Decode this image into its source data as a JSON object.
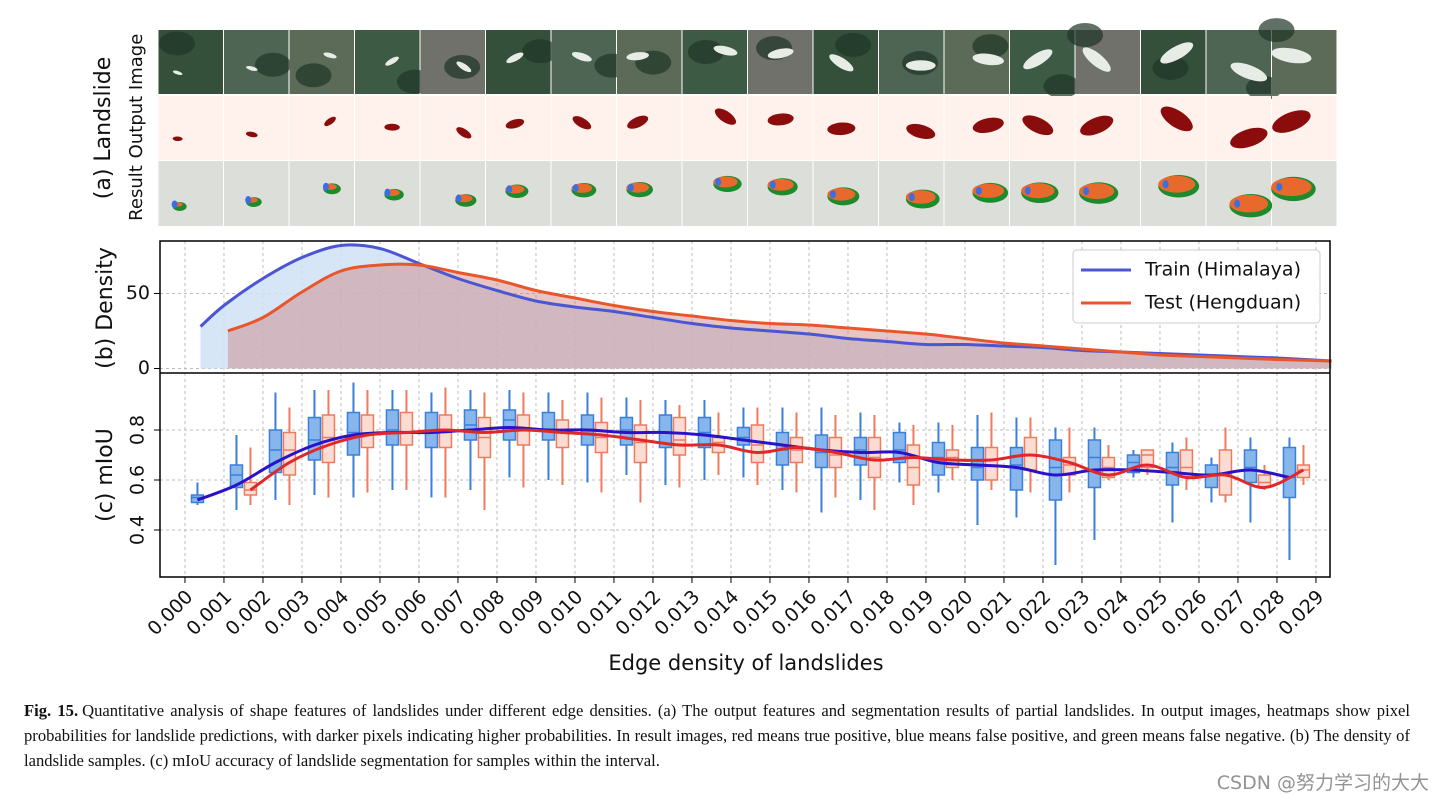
{
  "figure": {
    "panel_a_label": "(a) Landslide",
    "row_labels": [
      "Output Image",
      "Result"
    ]
  },
  "chart_data": [
    {
      "type": "density",
      "ylabel": "(b) Density",
      "xlim": [
        -0.00064,
        0.02936
      ],
      "ylim": [
        -3,
        85
      ],
      "yticks": [
        0,
        50
      ],
      "grid": true,
      "legend": "upper right",
      "series": [
        {
          "name": "Train (Himalaya)",
          "color": "#4b56d2",
          "fill": "#cfe2f5",
          "x": [
            0.0004,
            0.001,
            0.002,
            0.003,
            0.004,
            0.005,
            0.006,
            0.007,
            0.008,
            0.009,
            0.01,
            0.011,
            0.012,
            0.013,
            0.014,
            0.015,
            0.016,
            0.017,
            0.018,
            0.019,
            0.02,
            0.021,
            0.022,
            0.023,
            0.024,
            0.025,
            0.026,
            0.027,
            0.028,
            0.0294
          ],
          "values": [
            28,
            42,
            60,
            74,
            82,
            80,
            70,
            60,
            52,
            45,
            41,
            38,
            34,
            30,
            27,
            25,
            23,
            20,
            18,
            16,
            16,
            15,
            14,
            12,
            11,
            10,
            9,
            8,
            7,
            5
          ]
        },
        {
          "name": "Test (Hengduan)",
          "color": "#e8562a",
          "fill": "#c97f7f",
          "x": [
            0.0011,
            0.002,
            0.003,
            0.004,
            0.005,
            0.006,
            0.007,
            0.008,
            0.009,
            0.01,
            0.011,
            0.012,
            0.013,
            0.014,
            0.015,
            0.016,
            0.017,
            0.018,
            0.019,
            0.02,
            0.021,
            0.022,
            0.023,
            0.024,
            0.025,
            0.026,
            0.027,
            0.028,
            0.0294
          ],
          "values": [
            25,
            34,
            51,
            65,
            69,
            69,
            64,
            59,
            52,
            47,
            42,
            38,
            35,
            32,
            30,
            29,
            27,
            25,
            23,
            20,
            17,
            15,
            13,
            11,
            9,
            8,
            7,
            6,
            5
          ]
        }
      ]
    },
    {
      "type": "box",
      "ylabel": "(c) mIoU",
      "xlabel": "Edge density of landslides",
      "xlim": [
        -0.00064,
        0.02936
      ],
      "ylim": [
        0.212,
        1.028
      ],
      "yticks": [
        0.4,
        0.6,
        0.8
      ],
      "grid": true,
      "xticks": [
        {
          "value": 0,
          "label": "0.000"
        },
        {
          "value": 0.001,
          "label": "0.001"
        },
        {
          "value": 0.002,
          "label": "0.002"
        },
        {
          "value": 0.003,
          "label": "0.003"
        },
        {
          "value": 0.004,
          "label": "0.004"
        },
        {
          "value": 0.005,
          "label": "0.005"
        },
        {
          "value": 0.006,
          "label": "0.006"
        },
        {
          "value": 0.007,
          "label": "0.007"
        },
        {
          "value": 0.008,
          "label": "0.008"
        },
        {
          "value": 0.009,
          "label": "0.009"
        },
        {
          "value": 0.01,
          "label": "0.010"
        },
        {
          "value": 0.011,
          "label": "0.011"
        },
        {
          "value": 0.012,
          "label": "0.012"
        },
        {
          "value": 0.013,
          "label": "0.013"
        },
        {
          "value": 0.014,
          "label": "0.014"
        },
        {
          "value": 0.015,
          "label": "0.015"
        },
        {
          "value": 0.016,
          "label": "0.016"
        },
        {
          "value": 0.017,
          "label": "0.017"
        },
        {
          "value": 0.018,
          "label": "0.018"
        },
        {
          "value": 0.019,
          "label": "0.019"
        },
        {
          "value": 0.02,
          "label": "0.020"
        },
        {
          "value": 0.021,
          "label": "0.021"
        },
        {
          "value": 0.022,
          "label": "0.022"
        },
        {
          "value": 0.023,
          "label": "0.023"
        },
        {
          "value": 0.024,
          "label": "0.024"
        },
        {
          "value": 0.025,
          "label": "0.025"
        },
        {
          "value": 0.026,
          "label": "0.026"
        },
        {
          "value": 0.027,
          "label": "0.027"
        },
        {
          "value": 0.028,
          "label": "0.028"
        },
        {
          "value": 0.029,
          "label": "0.029"
        }
      ],
      "series": [
        {
          "color": "#3a7fdc",
          "fill": "#86b6ec",
          "line_color": "#2a12c8",
          "x": [
            0.0005,
            0.0015,
            0.0025,
            0.0035,
            0.0045,
            0.0055,
            0.0065,
            0.0075,
            0.0085,
            0.0095,
            0.0105,
            0.0115,
            0.0125,
            0.0135,
            0.0145,
            0.0155,
            0.0165,
            0.0175,
            0.0185,
            0.0195,
            0.0205,
            0.0215,
            0.0225,
            0.0235,
            0.0245,
            0.0255,
            0.0265,
            0.0275,
            0.0285
          ],
          "boxes": [
            [
              0.5,
              0.51,
              0.53,
              0.54,
              0.59
            ],
            [
              0.48,
              0.57,
              0.62,
              0.66,
              0.78
            ],
            [
              0.52,
              0.63,
              0.72,
              0.8,
              0.95
            ],
            [
              0.54,
              0.68,
              0.76,
              0.85,
              0.96
            ],
            [
              0.53,
              0.7,
              0.79,
              0.87,
              0.99
            ],
            [
              0.56,
              0.74,
              0.8,
              0.88,
              0.96
            ],
            [
              0.53,
              0.73,
              0.79,
              0.87,
              0.95
            ],
            [
              0.56,
              0.76,
              0.82,
              0.88,
              0.96
            ],
            [
              0.61,
              0.76,
              0.84,
              0.88,
              0.96
            ],
            [
              0.6,
              0.76,
              0.8,
              0.87,
              0.95
            ],
            [
              0.59,
              0.74,
              0.8,
              0.86,
              0.95
            ],
            [
              0.62,
              0.74,
              0.8,
              0.85,
              0.93
            ],
            [
              0.58,
              0.73,
              0.79,
              0.86,
              0.92
            ],
            [
              0.6,
              0.73,
              0.79,
              0.85,
              0.92
            ],
            [
              0.61,
              0.74,
              0.77,
              0.81,
              0.89
            ],
            [
              0.56,
              0.66,
              0.72,
              0.79,
              0.89
            ],
            [
              0.47,
              0.65,
              0.71,
              0.78,
              0.89
            ],
            [
              0.52,
              0.66,
              0.72,
              0.77,
              0.87
            ],
            [
              0.59,
              0.67,
              0.72,
              0.79,
              0.83
            ],
            [
              0.55,
              0.62,
              0.69,
              0.75,
              0.83
            ],
            [
              0.42,
              0.6,
              0.65,
              0.73,
              0.86
            ],
            [
              0.45,
              0.56,
              0.66,
              0.73,
              0.85
            ],
            [
              0.26,
              0.52,
              0.65,
              0.76,
              0.81
            ],
            [
              0.36,
              0.57,
              0.69,
              0.76,
              0.81
            ],
            [
              0.61,
              0.63,
              0.67,
              0.7,
              0.72
            ],
            [
              0.43,
              0.58,
              0.65,
              0.71,
              0.75
            ],
            [
              0.51,
              0.57,
              0.62,
              0.66,
              0.69
            ],
            [
              0.43,
              0.59,
              0.65,
              0.72,
              0.77
            ],
            [
              0.28,
              0.53,
              0.61,
              0.73,
              0.77
            ]
          ],
          "mean": [
            0.52,
            0.58,
            0.67,
            0.74,
            0.78,
            0.79,
            0.79,
            0.8,
            0.81,
            0.8,
            0.8,
            0.79,
            0.79,
            0.78,
            0.76,
            0.74,
            0.72,
            0.71,
            0.71,
            0.67,
            0.66,
            0.65,
            0.62,
            0.64,
            0.64,
            0.63,
            0.62,
            0.64,
            0.61
          ]
        },
        {
          "color": "#ef7a5c",
          "fill": "#fbdcd2",
          "line_color": "#e0282a",
          "x": [
            0.0015,
            0.0025,
            0.0035,
            0.0045,
            0.0055,
            0.0065,
            0.0075,
            0.0085,
            0.0095,
            0.0105,
            0.0115,
            0.0125,
            0.0135,
            0.0145,
            0.0155,
            0.0165,
            0.0175,
            0.0185,
            0.0195,
            0.0205,
            0.0215,
            0.0225,
            0.0235,
            0.0245,
            0.0255,
            0.0265,
            0.0275,
            0.0285
          ],
          "boxes": [
            [
              0.5,
              0.54,
              0.56,
              0.59,
              0.73
            ],
            [
              0.5,
              0.62,
              0.72,
              0.79,
              0.89
            ],
            [
              0.53,
              0.67,
              0.77,
              0.86,
              0.96
            ],
            [
              0.55,
              0.73,
              0.78,
              0.86,
              0.96
            ],
            [
              0.56,
              0.74,
              0.79,
              0.87,
              0.96
            ],
            [
              0.53,
              0.73,
              0.8,
              0.86,
              0.97
            ],
            [
              0.48,
              0.69,
              0.77,
              0.85,
              0.95
            ],
            [
              0.57,
              0.74,
              0.8,
              0.86,
              0.95
            ],
            [
              0.58,
              0.73,
              0.79,
              0.84,
              0.92
            ],
            [
              0.55,
              0.71,
              0.77,
              0.83,
              0.93
            ],
            [
              0.51,
              0.67,
              0.75,
              0.82,
              0.92
            ],
            [
              0.57,
              0.7,
              0.76,
              0.85,
              0.9
            ],
            [
              0.62,
              0.71,
              0.75,
              0.77,
              0.87
            ],
            [
              0.58,
              0.67,
              0.74,
              0.82,
              0.89
            ],
            [
              0.55,
              0.67,
              0.72,
              0.77,
              0.87
            ],
            [
              0.53,
              0.65,
              0.7,
              0.77,
              0.86
            ],
            [
              0.48,
              0.61,
              0.69,
              0.77,
              0.86
            ],
            [
              0.5,
              0.58,
              0.65,
              0.74,
              0.82
            ],
            [
              0.6,
              0.65,
              0.69,
              0.72,
              0.82
            ],
            [
              0.56,
              0.6,
              0.66,
              0.73,
              0.87
            ],
            [
              0.55,
              0.64,
              0.7,
              0.77,
              0.85
            ],
            [
              0.55,
              0.62,
              0.66,
              0.69,
              0.81
            ],
            [
              0.6,
              0.61,
              0.65,
              0.69,
              0.74
            ],
            [
              0.62,
              0.65,
              0.7,
              0.72,
              0.72
            ],
            [
              0.56,
              0.61,
              0.65,
              0.72,
              0.77
            ],
            [
              0.51,
              0.54,
              0.62,
              0.72,
              0.81
            ],
            [
              0.56,
              0.57,
              0.59,
              0.62,
              0.66
            ],
            [
              0.58,
              0.61,
              0.64,
              0.66,
              0.74
            ]
          ],
          "mean": [
            0.56,
            0.67,
            0.74,
            0.78,
            0.79,
            0.8,
            0.79,
            0.8,
            0.79,
            0.78,
            0.76,
            0.74,
            0.74,
            0.71,
            0.73,
            0.71,
            0.68,
            0.69,
            0.68,
            0.68,
            0.7,
            0.67,
            0.62,
            0.66,
            0.61,
            0.62,
            0.57,
            0.64
          ]
        }
      ]
    }
  ],
  "caption": {
    "label": "Fig. 15.",
    "text": "Quantitative analysis of shape features of landslides under different edge densities. (a) The output features and segmentation results of partial landslides. In output images, heatmaps show pixel probabilities for landslide predictions, with darker pixels indicating higher probabilities. In result images, red means true positive, blue means false positive, and green means false negative. (b) The density of landslide samples. (c) mIoU accuracy of landslide segmentation for samples within the interval."
  },
  "watermark": "CSDN @努力学习的大大"
}
